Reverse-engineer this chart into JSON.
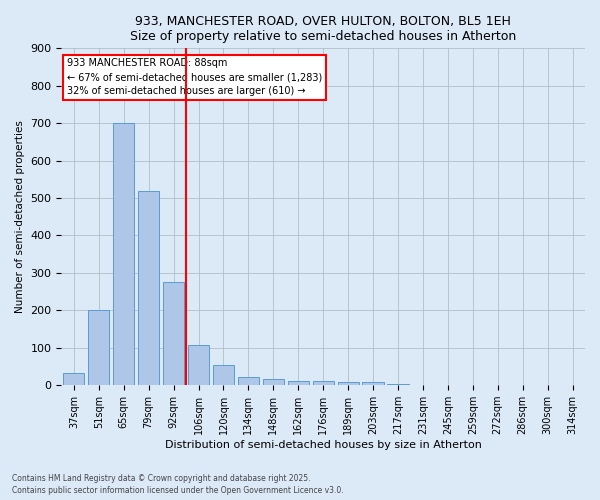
{
  "title_line1": "933, MANCHESTER ROAD, OVER HULTON, BOLTON, BL5 1EH",
  "title_line2": "Size of property relative to semi-detached houses in Atherton",
  "xlabel": "Distribution of semi-detached houses by size in Atherton",
  "ylabel": "Number of semi-detached properties",
  "categories": [
    "37sqm",
    "51sqm",
    "65sqm",
    "79sqm",
    "92sqm",
    "106sqm",
    "120sqm",
    "134sqm",
    "148sqm",
    "162sqm",
    "176sqm",
    "189sqm",
    "203sqm",
    "217sqm",
    "231sqm",
    "245sqm",
    "259sqm",
    "272sqm",
    "286sqm",
    "300sqm",
    "314sqm"
  ],
  "values": [
    32,
    200,
    700,
    520,
    275,
    108,
    55,
    22,
    17,
    12,
    12,
    9,
    9,
    3,
    0,
    0,
    0,
    0,
    0,
    0,
    0
  ],
  "bar_color": "#aec6e8",
  "bar_edge_color": "#5b9bd5",
  "highlight_x": "92sqm",
  "highlight_color": "red",
  "annotation_title": "933 MANCHESTER ROAD: 88sqm",
  "annotation_line1": "← 67% of semi-detached houses are smaller (1,283)",
  "annotation_line2": "32% of semi-detached houses are larger (610) →",
  "ylim": [
    0,
    900
  ],
  "yticks": [
    0,
    100,
    200,
    300,
    400,
    500,
    600,
    700,
    800,
    900
  ],
  "footer1": "Contains HM Land Registry data © Crown copyright and database right 2025.",
  "footer2": "Contains public sector information licensed under the Open Government Licence v3.0.",
  "bg_color": "#dce9f7",
  "plot_bg_color": "#dce9f7",
  "grid_color": "#b0bec5"
}
